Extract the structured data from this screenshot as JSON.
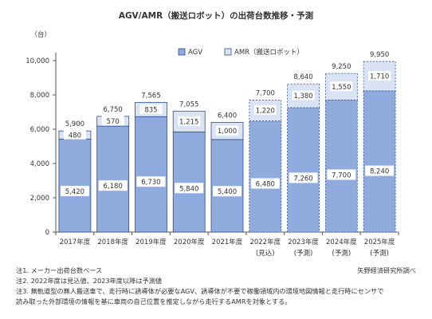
{
  "title": "AGV/AMR（搬送ロボット）の出荷台数推移・予測",
  "source": "矢野経済研究所調べ",
  "notes": [
    "注1. メーカー出荷台数ベース",
    "注2. 2022年度は見込値、2023年度以降は予測値",
    "注3. 無軌道型の無人搬送車で、走行時に誘導体が必要なAGV、誘導体が不要で稼働領域内の環境地図情報と走行時にセンサで",
    "読み取った外部環境の情報を基に車両の自己位置を推定しながら走行するAMRを対象とする。"
  ],
  "colors": {
    "agv_fill": "#8faadc",
    "amr_fill": "#dae3f3",
    "bar_edge": "#2f4f8f",
    "axis": "#555555",
    "grid": "#d9d9d9"
  },
  "chart_data": {
    "type": "bar",
    "stacked": true,
    "unit_label": "（台）",
    "categories": [
      "2017年度",
      "2018年度",
      "2019年度",
      "2020年度",
      "2021年度",
      "2022年度",
      "2023年度",
      "2024年度",
      "2025年度"
    ],
    "sub_labels": [
      "",
      "",
      "",
      "",
      "",
      "(見込)",
      "(予測)",
      "(予測)",
      "(予測)"
    ],
    "estimated": [
      false,
      false,
      false,
      false,
      false,
      true,
      true,
      true,
      true
    ],
    "series": [
      {
        "name": "AGV",
        "values": [
          5420,
          6180,
          6730,
          5840,
          5400,
          6480,
          7260,
          7700,
          8240
        ]
      },
      {
        "name": "AMR（搬送ロボット）",
        "values": [
          480,
          570,
          835,
          1215,
          1000,
          1220,
          1380,
          1550,
          1710
        ]
      }
    ],
    "totals": [
      5900,
      6750,
      7565,
      7055,
      6400,
      7700,
      8640,
      9250,
      9950
    ],
    "value_labels": {
      "agv": [
        "5,420",
        "6,180",
        "6,730",
        "5,840",
        "5,400",
        "6,480",
        "7,260",
        "7,700",
        "8,240"
      ],
      "amr": [
        "480",
        "570",
        "835",
        "1,215",
        "1,000",
        "1,220",
        "1,380",
        "1,550",
        "1,710"
      ],
      "totals": [
        "5,900",
        "6,750",
        "7,565",
        "7,055",
        "6,400",
        "7,700",
        "8,640",
        "9,250",
        "9,950"
      ]
    },
    "yticks": [
      0,
      2000,
      4000,
      6000,
      8000,
      10000
    ],
    "ytick_labels": [
      "0",
      "2,000",
      "4,000",
      "6,000",
      "8,000",
      "10,000"
    ],
    "ylim": [
      0,
      10000
    ],
    "grid": false,
    "legend_position": "top-center"
  }
}
